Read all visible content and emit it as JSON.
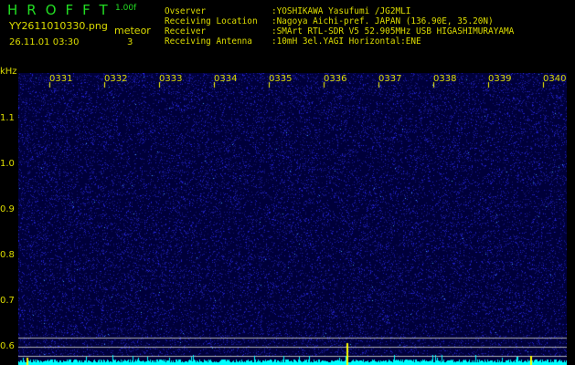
{
  "header": {
    "title": "HROFFT",
    "version": "1.00f",
    "filename": "YY2611010330.png",
    "meteor_label": "meteor",
    "datetime": "26.11.01 03:30",
    "meteor_count": "3"
  },
  "info": [
    {
      "key": "Ovserver",
      "value": ":YOSHIKAWA Yasufumi /JG2MLI"
    },
    {
      "key": "Receiving Location",
      "value": ":Nagoya Aichi-pref. JAPAN (136.90E, 35.20N)"
    },
    {
      "key": "Receiver",
      "value": ":SMArt RTL-SDR V5 52.905MHz USB HIGASHIMURAYAMA"
    },
    {
      "key": "Receiving Antenna",
      "value": ":10mH 3el.YAGI Horizontal:ENE"
    }
  ],
  "spectrogram": {
    "y_unit": "kHz",
    "time_labels": [
      "0331",
      "0332",
      "0333",
      "0334",
      "0335",
      "0336",
      "0337",
      "0338",
      "0339",
      "0340"
    ],
    "freq_labels": [
      "1.1",
      "1.0",
      "0.9",
      "0.8",
      "0.7",
      "0.6"
    ],
    "colors": {
      "background": "#00003a",
      "noise": "#2a2aff",
      "trace": "#00ffff",
      "marker": "#ffff00",
      "guide": "#b0b0b0"
    }
  }
}
